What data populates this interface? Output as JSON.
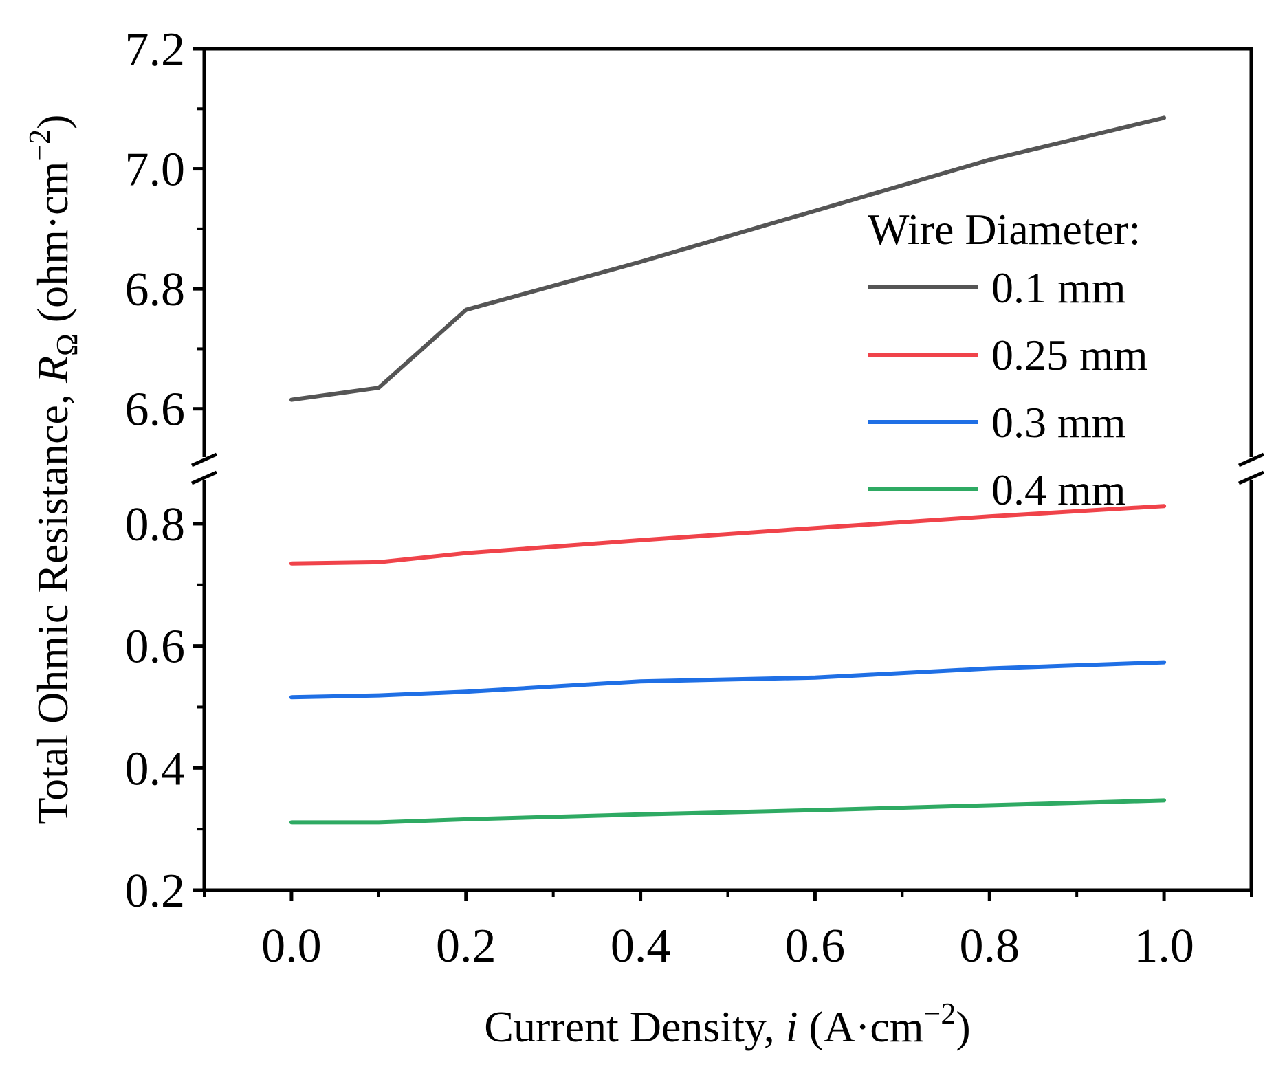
{
  "chart_data": {
    "type": "line",
    "xlabel": {
      "prefix": "Current Density, ",
      "var": "i",
      "unit_prefix": " (A·cm",
      "sup": "−2",
      "suffix": ")"
    },
    "ylabel": {
      "prefix": "Total Ohmic Resistance, ",
      "var": "R",
      "sub": "Ω",
      "unit_prefix": " (ohm·cm",
      "sup": "−2",
      "suffix": ")"
    },
    "x": [
      0.0,
      0.1,
      0.2,
      0.4,
      0.6,
      0.8,
      1.0
    ],
    "xlim": [
      -0.1,
      1.1
    ],
    "xticks": [
      0.0,
      0.2,
      0.4,
      0.6,
      0.8,
      1.0
    ],
    "xtick_labels": [
      "0.0",
      "0.2",
      "0.4",
      "0.6",
      "0.8",
      "1.0"
    ],
    "y_segments": [
      {
        "name": "upper",
        "ylim": [
          6.5,
          7.2
        ],
        "ticks": [
          6.6,
          6.8,
          7.0,
          7.2
        ],
        "tick_labels": [
          "6.6",
          "6.8",
          "7.0",
          "7.2"
        ]
      },
      {
        "name": "lower",
        "ylim": [
          0.2,
          0.89
        ],
        "ticks": [
          0.2,
          0.4,
          0.6,
          0.8
        ],
        "tick_labels": [
          "0.2",
          "0.4",
          "0.6",
          "0.8"
        ]
      }
    ],
    "axis_break": true,
    "legend": {
      "title": "Wire Diameter:",
      "position": "right"
    },
    "series": [
      {
        "name": "0.1 mm",
        "color": "#555555",
        "segment": "upper",
        "values": [
          6.615,
          6.635,
          6.765,
          6.845,
          6.93,
          7.015,
          7.085
        ]
      },
      {
        "name": "0.25 mm",
        "color": "#f0434a",
        "segment": "lower",
        "values": [
          0.735,
          0.737,
          0.752,
          0.773,
          0.793,
          0.812,
          0.829
        ]
      },
      {
        "name": "0.3 mm",
        "color": "#1f6fe5",
        "segment": "lower",
        "values": [
          0.516,
          0.519,
          0.525,
          0.542,
          0.548,
          0.563,
          0.573
        ]
      },
      {
        "name": "0.4 mm",
        "color": "#2eaa63",
        "segment": "lower",
        "values": [
          0.311,
          0.311,
          0.316,
          0.324,
          0.331,
          0.339,
          0.347
        ]
      }
    ]
  }
}
